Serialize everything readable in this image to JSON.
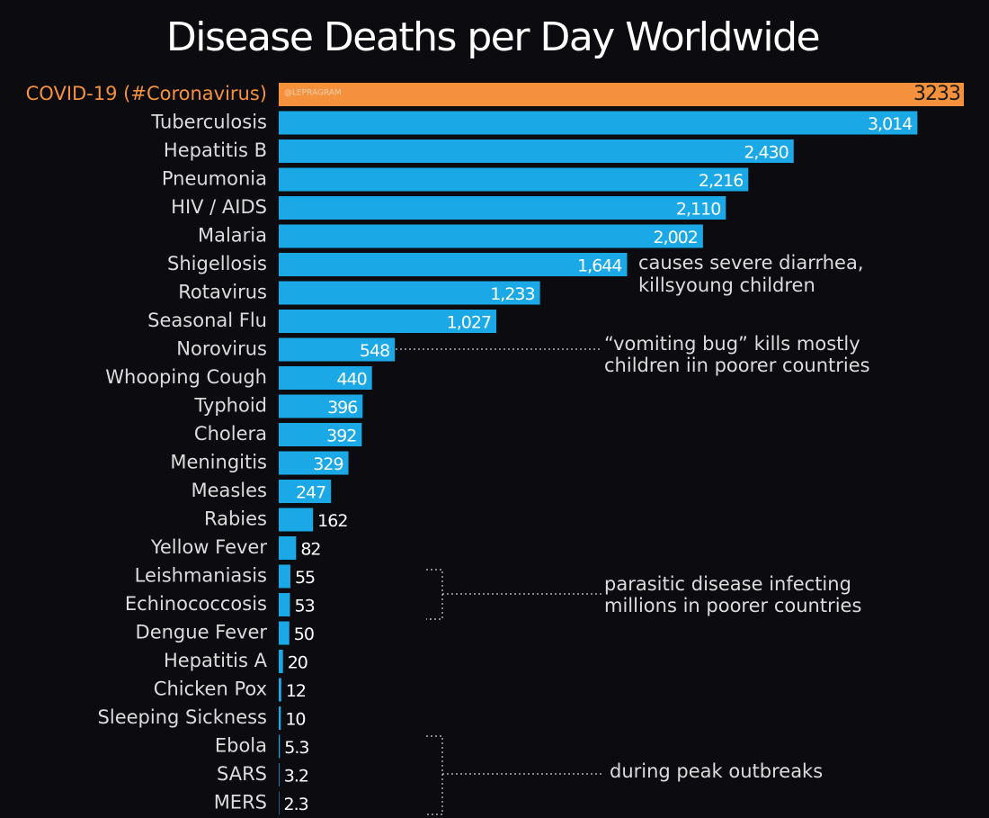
{
  "chart_data": {
    "type": "bar",
    "orientation": "horizontal",
    "title": "Disease Deaths per Day Worldwide",
    "watermark": "@LEPRAGRAM",
    "categories": [
      "COVID-19 (#Coronavirus)",
      "Tuberculosis",
      "Hepatitis B",
      "Pneumonia",
      "HIV / AIDS",
      "Malaria",
      "Shigellosis",
      "Rotavirus",
      "Seasonal Flu",
      "Norovirus",
      "Whooping Cough",
      "Typhoid",
      "Cholera",
      "Meningitis",
      "Measles",
      "Rabies",
      "Yellow Fever",
      "Leishmaniasis",
      "Echinococcosis",
      "Dengue Fever",
      "Hepatitis A",
      "Chicken Pox",
      "Sleeping Sickness",
      "Ebola",
      "SARS",
      "MERS"
    ],
    "values": [
      3233,
      3014,
      2430,
      2216,
      2110,
      2002,
      1644,
      1233,
      1027,
      548,
      440,
      396,
      392,
      329,
      247,
      162,
      82,
      55,
      53,
      50,
      20,
      12,
      10,
      5.3,
      3.2,
      2.3
    ],
    "value_labels": [
      "3233",
      "3,014",
      "2,430",
      "2,216",
      "2,110",
      "2,002",
      "1,644",
      "1,233",
      "1,027",
      "548",
      "440",
      "396",
      "392",
      "329",
      "247",
      "162",
      "82",
      "55",
      "53",
      "50",
      "20",
      "12",
      "10",
      "5.3",
      "3.2",
      "2.3"
    ],
    "colors": [
      "#f5913c",
      "#1aa8e6",
      "#1aa8e6",
      "#1aa8e6",
      "#1aa8e6",
      "#1aa8e6",
      "#1aa8e6",
      "#1aa8e6",
      "#1aa8e6",
      "#1aa8e6",
      "#1aa8e6",
      "#1aa8e6",
      "#1aa8e6",
      "#1aa8e6",
      "#1aa8e6",
      "#1aa8e6",
      "#1aa8e6",
      "#1aa8e6",
      "#1aa8e6",
      "#1aa8e6",
      "#1aa8e6",
      "#1aa8e6",
      "#1aa8e6",
      "#1aa8e6",
      "#1aa8e6",
      "#1aa8e6"
    ],
    "annotations": [
      [
        "causes severe diarrhea,",
        "killsyoung children"
      ],
      [
        "“vomiting bug” kills mostly",
        "children iin poorer countries"
      ],
      [
        "parasitic disease infecting",
        "millions in poorer countries"
      ],
      [
        "during peak outbreaks"
      ]
    ]
  }
}
